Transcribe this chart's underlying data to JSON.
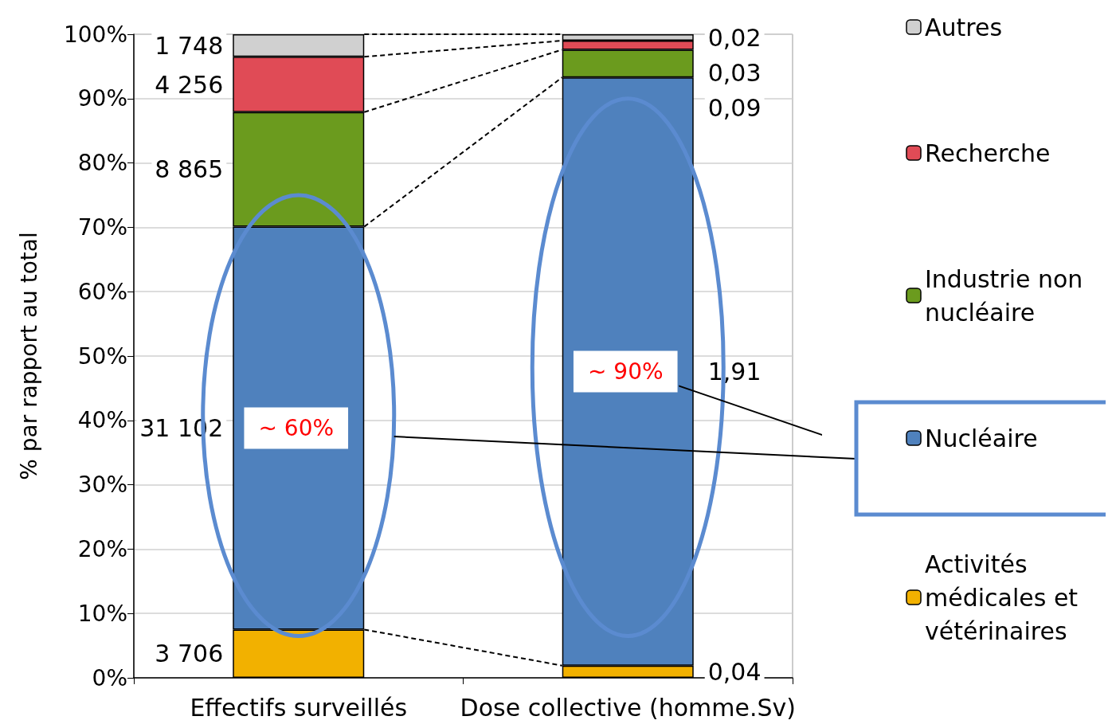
{
  "chart_data": {
    "type": "bar",
    "stacked": true,
    "ylabel": "% par rapport au total",
    "categories": [
      "Effectifs surveillés",
      "Dose collective (homme.Sv)"
    ],
    "ylim": [
      0,
      100
    ],
    "yticks": [
      {
        "value": 0,
        "label": "0%"
      },
      {
        "value": 10,
        "label": "10%"
      },
      {
        "value": 20,
        "label": "20%"
      },
      {
        "value": 30,
        "label": "30%"
      },
      {
        "value": 40,
        "label": "40%"
      },
      {
        "value": 50,
        "label": "50%"
      },
      {
        "value": 60,
        "label": "60%"
      },
      {
        "value": 70,
        "label": "70%"
      },
      {
        "value": 80,
        "label": "80%"
      },
      {
        "value": 90,
        "label": "90%"
      },
      {
        "value": 100,
        "label": "100%"
      }
    ],
    "grid": "y",
    "legend": "right",
    "series": [
      {
        "name": "Activités médicales et vétérinaires",
        "color": "#f2b100",
        "values": [
          7.5,
          1.9
        ]
      },
      {
        "name": "Nucléaire",
        "color": "#4f81bd",
        "values": [
          62.6,
          91.4
        ]
      },
      {
        "name": "Industrie non nucléaire",
        "color": "#6b9b1e",
        "values": [
          17.8,
          4.3
        ]
      },
      {
        "name": "Recherche",
        "color": "#e04b56",
        "values": [
          8.6,
          1.4
        ]
      },
      {
        "name": "Autres",
        "color": "#d0d0d0",
        "values": [
          3.5,
          1.0
        ]
      }
    ],
    "annotations": [
      "~ 60%",
      "~ 90%",
      "3 706",
      "31 102",
      "8 865",
      "4 256",
      "1 748",
      "0,04",
      "1,91",
      "0,09",
      "0,03",
      "0,02"
    ]
  }
}
